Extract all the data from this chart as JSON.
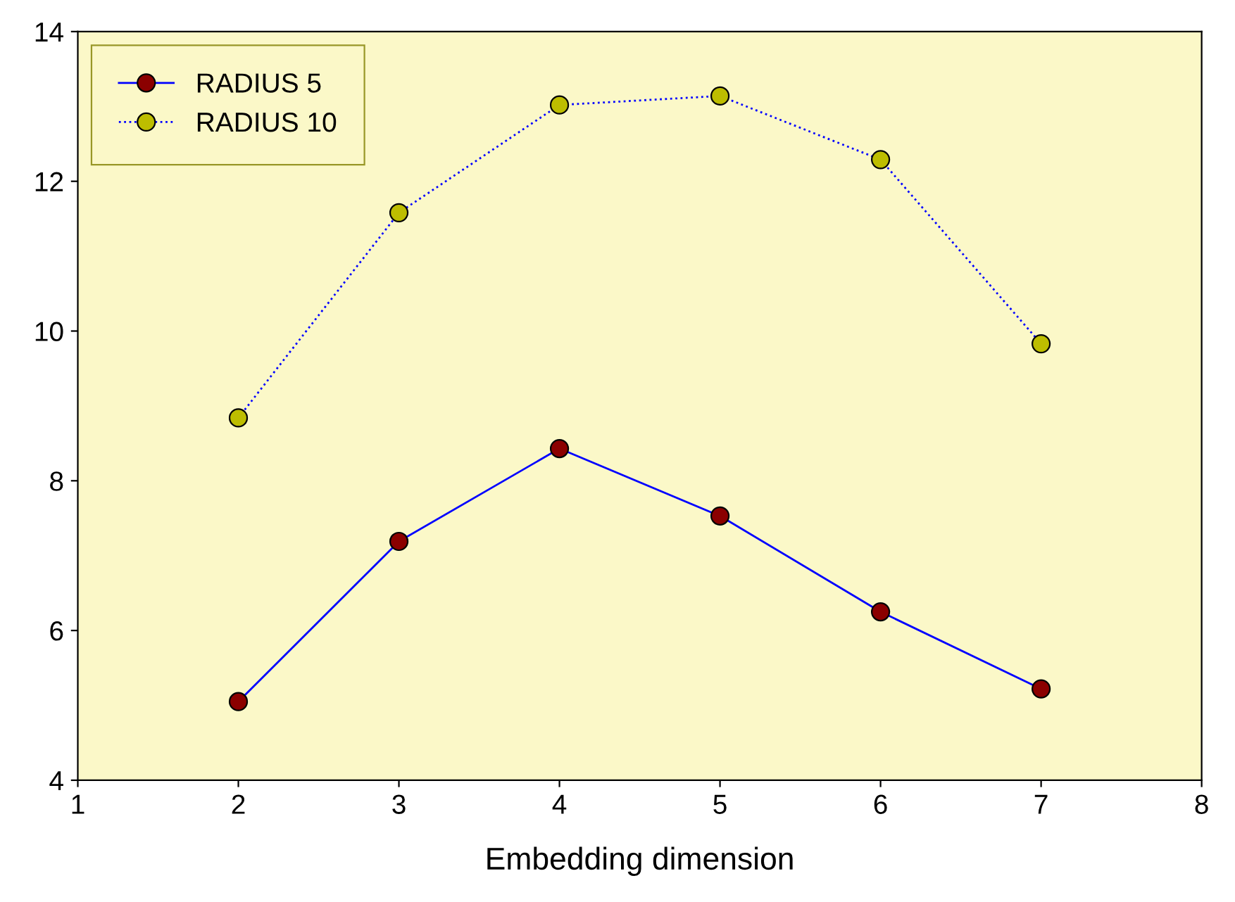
{
  "chart_data": {
    "type": "line",
    "xlabel": "Embedding dimension",
    "x": [
      2,
      3,
      4,
      5,
      6,
      7
    ],
    "series": [
      {
        "name": "RADIUS 5",
        "color": "#8b0000",
        "line_style": "solid",
        "values": [
          5.05,
          7.19,
          8.43,
          7.53,
          6.25,
          5.22
        ]
      },
      {
        "name": "RADIUS 10",
        "color": "#bdbd00",
        "line_style": "dotted",
        "values": [
          8.84,
          11.58,
          13.02,
          13.14,
          12.29,
          9.83
        ]
      }
    ],
    "xlim": [
      1,
      8
    ],
    "xticks": [
      1,
      2,
      3,
      4,
      5,
      6,
      7,
      8
    ],
    "ylim": [
      4,
      14
    ],
    "yticks": [
      4,
      6,
      8,
      10,
      12,
      14
    ],
    "marker": "circle",
    "legend": "top left",
    "grid": false
  }
}
